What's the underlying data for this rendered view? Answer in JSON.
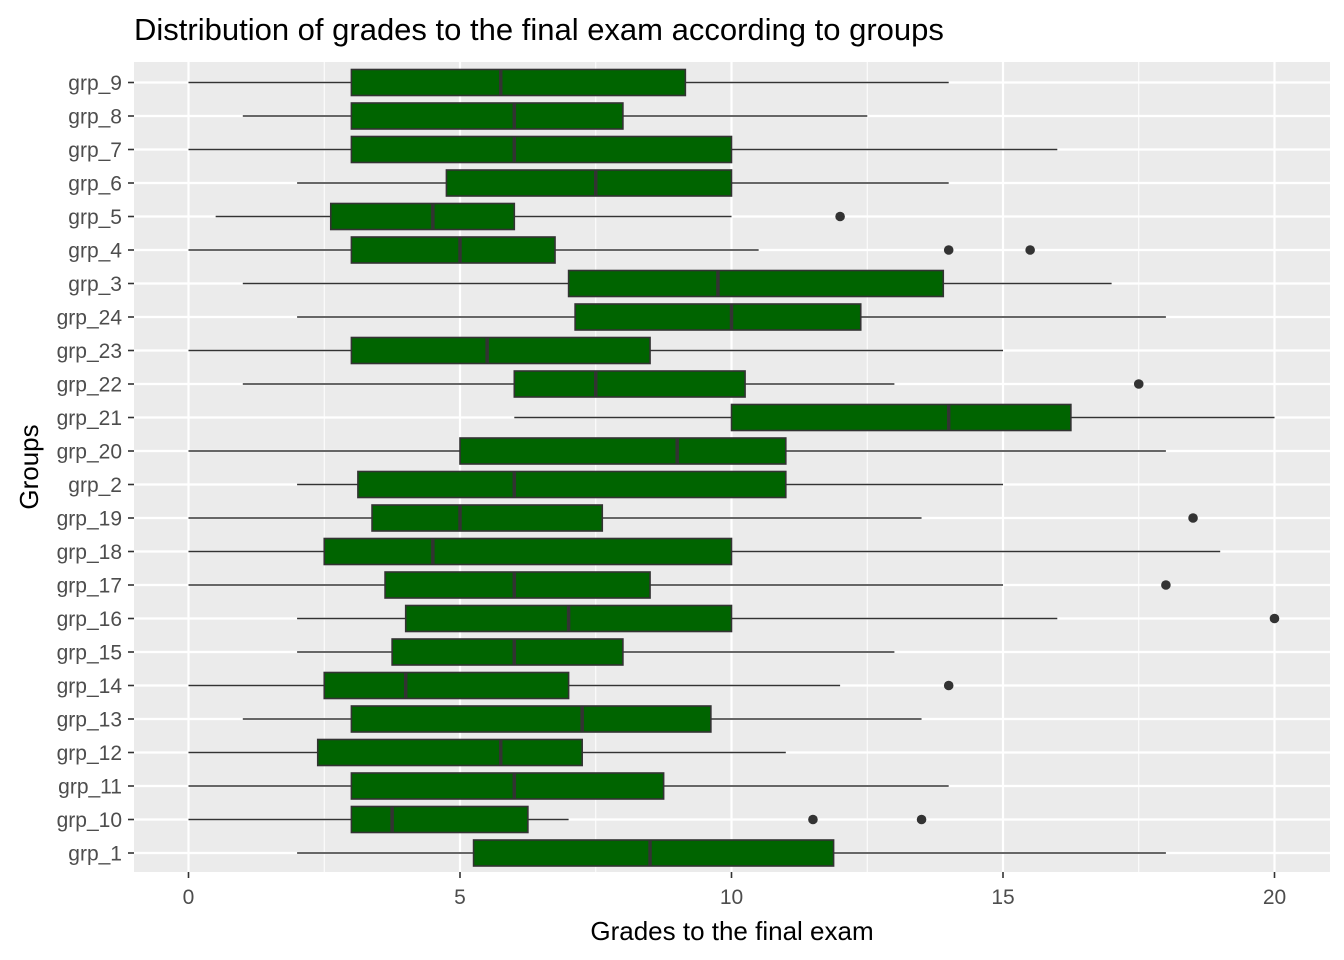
{
  "chart_data": {
    "type": "boxplot",
    "orientation": "horizontal",
    "title": "Distribution of grades to the final exam according to groups",
    "xlabel": "Grades to the final exam",
    "ylabel": "Groups",
    "xlim": [
      -1.0,
      21.0
    ],
    "x_ticks": [
      0,
      5,
      10,
      15,
      20
    ],
    "grid": true,
    "legend": "none",
    "colors": {
      "box_fill": "#006400",
      "box_stroke": "#333333",
      "panel": "#ebebeb",
      "grid": "#ffffff"
    },
    "groups": [
      {
        "label": "grp_9",
        "whisker_low": 0,
        "q1": 3,
        "median": 5.75,
        "q3": 9.15,
        "whisker_high": 14,
        "outliers": []
      },
      {
        "label": "grp_8",
        "whisker_low": 1,
        "q1": 3,
        "median": 6,
        "q3": 8,
        "whisker_high": 12.5,
        "outliers": []
      },
      {
        "label": "grp_7",
        "whisker_low": 0,
        "q1": 3,
        "median": 6,
        "q3": 10,
        "whisker_high": 16,
        "outliers": []
      },
      {
        "label": "grp_6",
        "whisker_low": 2,
        "q1": 4.75,
        "median": 7.5,
        "q3": 10,
        "whisker_high": 14,
        "outliers": []
      },
      {
        "label": "grp_5",
        "whisker_low": 0.5,
        "q1": 2.62,
        "median": 4.5,
        "q3": 6,
        "whisker_high": 10,
        "outliers": [
          12
        ]
      },
      {
        "label": "grp_4",
        "whisker_low": 0,
        "q1": 3,
        "median": 5,
        "q3": 6.75,
        "whisker_high": 10.5,
        "outliers": [
          14,
          15.5
        ]
      },
      {
        "label": "grp_3",
        "whisker_low": 1,
        "q1": 7,
        "median": 9.75,
        "q3": 13.9,
        "whisker_high": 17,
        "outliers": []
      },
      {
        "label": "grp_24",
        "whisker_low": 2,
        "q1": 7.12,
        "median": 10,
        "q3": 12.38,
        "whisker_high": 18,
        "outliers": []
      },
      {
        "label": "grp_23",
        "whisker_low": 0,
        "q1": 3,
        "median": 5.5,
        "q3": 8.5,
        "whisker_high": 15,
        "outliers": []
      },
      {
        "label": "grp_22",
        "whisker_low": 1,
        "q1": 6,
        "median": 7.5,
        "q3": 10.25,
        "whisker_high": 13,
        "outliers": [
          17.5
        ]
      },
      {
        "label": "grp_21",
        "whisker_low": 6,
        "q1": 10,
        "median": 14,
        "q3": 16.25,
        "whisker_high": 20,
        "outliers": []
      },
      {
        "label": "grp_20",
        "whisker_low": 0,
        "q1": 5,
        "median": 9,
        "q3": 11,
        "whisker_high": 18,
        "outliers": []
      },
      {
        "label": "grp_2",
        "whisker_low": 2,
        "q1": 3.12,
        "median": 6,
        "q3": 11,
        "whisker_high": 15,
        "outliers": []
      },
      {
        "label": "grp_19",
        "whisker_low": 0,
        "q1": 3.38,
        "median": 5,
        "q3": 7.62,
        "whisker_high": 13.5,
        "outliers": [
          18.5
        ]
      },
      {
        "label": "grp_18",
        "whisker_low": 0,
        "q1": 2.5,
        "median": 4.5,
        "q3": 10,
        "whisker_high": 19,
        "outliers": []
      },
      {
        "label": "grp_17",
        "whisker_low": 0,
        "q1": 3.62,
        "median": 6,
        "q3": 8.5,
        "whisker_high": 15,
        "outliers": [
          18
        ]
      },
      {
        "label": "grp_16",
        "whisker_low": 2,
        "q1": 4,
        "median": 7,
        "q3": 10,
        "whisker_high": 16,
        "outliers": [
          20
        ]
      },
      {
        "label": "grp_15",
        "whisker_low": 2,
        "q1": 3.75,
        "median": 6,
        "q3": 8,
        "whisker_high": 13,
        "outliers": []
      },
      {
        "label": "grp_14",
        "whisker_low": 0,
        "q1": 2.5,
        "median": 4,
        "q3": 7,
        "whisker_high": 12,
        "outliers": [
          14
        ]
      },
      {
        "label": "grp_13",
        "whisker_low": 1,
        "q1": 3,
        "median": 7.25,
        "q3": 9.62,
        "whisker_high": 13.5,
        "outliers": []
      },
      {
        "label": "grp_12",
        "whisker_low": 0,
        "q1": 2.38,
        "median": 5.75,
        "q3": 7.25,
        "whisker_high": 11,
        "outliers": []
      },
      {
        "label": "grp_11",
        "whisker_low": 0,
        "q1": 3,
        "median": 6,
        "q3": 8.75,
        "whisker_high": 14,
        "outliers": []
      },
      {
        "label": "grp_10",
        "whisker_low": 0,
        "q1": 3,
        "median": 3.75,
        "q3": 6.25,
        "whisker_high": 7,
        "outliers": [
          11.5,
          13.5
        ]
      },
      {
        "label": "grp_1",
        "whisker_low": 2,
        "q1": 5.25,
        "median": 8.5,
        "q3": 11.88,
        "whisker_high": 18,
        "outliers": []
      }
    ]
  }
}
